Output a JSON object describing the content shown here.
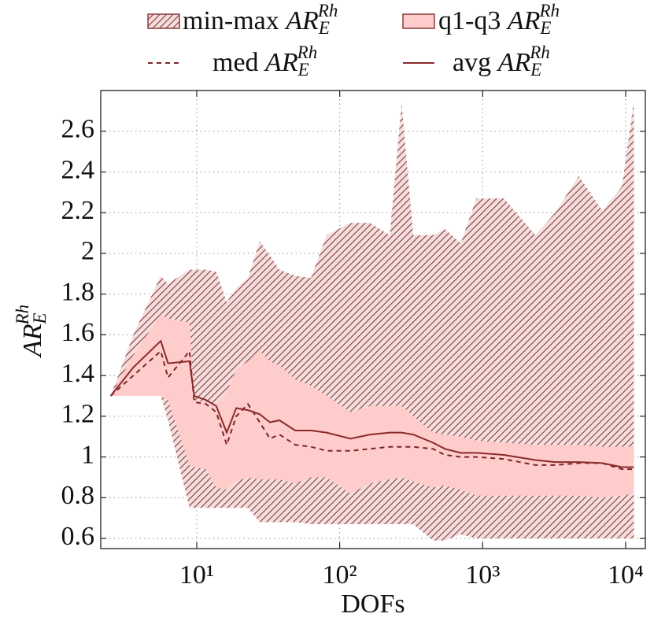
{
  "chart_data": {
    "type": "band-line",
    "y_label": "AR_E^Rh",
    "x_label": "DOFs",
    "log_x": true,
    "grid": true,
    "legend": "top",
    "xlim": [
      2.13,
      13740
    ],
    "ylim": [
      0.55,
      2.8
    ],
    "xticks": [
      {
        "value": 10,
        "label": "10¹"
      },
      {
        "value": 100,
        "label": "10²"
      },
      {
        "value": 1000,
        "label": "10³"
      },
      {
        "value": 10000,
        "label": "10⁴"
      }
    ],
    "yticks": [
      0.6,
      0.8,
      1,
      1.2,
      1.4,
      1.6,
      1.8,
      2,
      2.2,
      2.4,
      2.6
    ],
    "x": [
      2.5,
      3.6,
      5.6,
      6.3,
      8.9,
      9.6,
      11.6,
      13.7,
      16.2,
      18.9,
      22.8,
      27.6,
      32.5,
      37.9,
      48.9,
      63,
      81,
      119,
      163,
      224,
      271,
      327,
      450,
      544,
      702,
      904,
      1409,
      2340,
      3213,
      4700,
      6870,
      9440,
      11430
    ],
    "series": [
      {
        "name": "min-max AR_E^Rh",
        "style": "hatch",
        "color": "#8b3a3a",
        "low": [
          1.3,
          1.3,
          1.3,
          1.18,
          0.75,
          0.75,
          0.75,
          0.75,
          0.75,
          0.75,
          0.75,
          0.68,
          0.68,
          0.68,
          0.68,
          0.67,
          0.67,
          0.67,
          0.67,
          0.67,
          0.67,
          0.67,
          0.59,
          0.59,
          0.62,
          0.6,
          0.6,
          0.6,
          0.6,
          0.6,
          0.6,
          0.6,
          0.6
        ],
        "high": [
          1.3,
          1.6,
          1.89,
          1.85,
          1.92,
          1.92,
          1.92,
          1.91,
          1.76,
          1.83,
          1.88,
          2.06,
          1.99,
          1.92,
          1.89,
          1.88,
          2.09,
          2.15,
          2.15,
          2.09,
          2.74,
          2.09,
          2.09,
          2.12,
          2.05,
          2.27,
          2.27,
          2.09,
          2.2,
          2.38,
          2.21,
          2.33,
          2.75
        ]
      },
      {
        "name": "q1-q3 AR_E^Rh",
        "style": "fill",
        "color": "#ffcccc",
        "edge": "#8b3a3a",
        "low": [
          1.3,
          1.3,
          1.3,
          1.28,
          0.96,
          0.95,
          0.94,
          0.85,
          0.84,
          0.88,
          0.9,
          0.89,
          0.89,
          0.89,
          0.87,
          0.9,
          0.9,
          0.82,
          0.87,
          0.89,
          0.9,
          0.88,
          0.85,
          0.86,
          0.84,
          0.81,
          0.81,
          0.81,
          0.81,
          0.81,
          0.8,
          0.81,
          0.82
        ],
        "high": [
          1.3,
          1.5,
          1.7,
          1.68,
          1.66,
          1.28,
          1.27,
          1.26,
          1.32,
          1.43,
          1.47,
          1.52,
          1.47,
          1.45,
          1.38,
          1.35,
          1.3,
          1.22,
          1.25,
          1.25,
          1.25,
          1.2,
          1.12,
          1.11,
          1.1,
          1.08,
          1.07,
          1.06,
          1.06,
          1.06,
          1.05,
          1.05,
          1.05
        ]
      },
      {
        "name": "med AR_E^Rh",
        "style": "dashed",
        "color": "#7a2626",
        "values": [
          1.3,
          1.4,
          1.52,
          1.39,
          1.52,
          1.27,
          1.26,
          1.22,
          1.06,
          1.2,
          1.26,
          1.17,
          1.09,
          1.11,
          1.06,
          1.05,
          1.03,
          1.03,
          1.04,
          1.05,
          1.05,
          1.05,
          1.04,
          1.01,
          1.0,
          1.0,
          0.99,
          0.96,
          0.96,
          0.97,
          0.97,
          0.94,
          0.94
        ]
      },
      {
        "name": "avg AR_E^Rh",
        "style": "solid",
        "color": "#8b2a2a",
        "values": [
          1.3,
          1.44,
          1.57,
          1.46,
          1.47,
          1.3,
          1.28,
          1.25,
          1.12,
          1.24,
          1.23,
          1.21,
          1.17,
          1.18,
          1.13,
          1.13,
          1.12,
          1.09,
          1.11,
          1.12,
          1.12,
          1.11,
          1.07,
          1.04,
          1.02,
          1.02,
          1.01,
          0.985,
          0.975,
          0.975,
          0.97,
          0.95,
          0.95
        ]
      }
    ]
  }
}
